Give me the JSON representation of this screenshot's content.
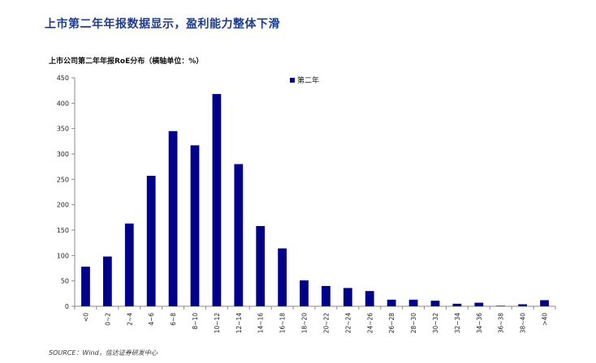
{
  "page": {
    "headline": "上市第二年年报数据显示，盈利能力整体下滑",
    "source": "SOURCE：Wind，信达证券研发中心"
  },
  "chart_data": {
    "type": "bar",
    "title": "上市公司第二年年报RoE分布（横轴单位：%）",
    "xlabel": "",
    "ylabel": "",
    "categories": [
      "<0",
      "0~2",
      "2~4",
      "4~6",
      "6~8",
      "8~10",
      "10~12",
      "12~14",
      "14~16",
      "16~18",
      "18~20",
      "20~22",
      "22~24",
      "24~26",
      "26~28",
      "28~30",
      "30~32",
      "32~34",
      "34~36",
      "36~38",
      "38~40",
      ">40"
    ],
    "series": [
      {
        "name": "第二年",
        "values": [
          78,
          98,
          163,
          257,
          345,
          317,
          418,
          280,
          158,
          114,
          51,
          40,
          36,
          30,
          13,
          13,
          11,
          5,
          7,
          1,
          4,
          12
        ],
        "color": "#00008b"
      }
    ],
    "ylim": [
      0,
      450
    ],
    "yticks": [
      0,
      50,
      100,
      150,
      200,
      250,
      300,
      350,
      400,
      450
    ],
    "grid": false,
    "legend_position": "top-right"
  }
}
